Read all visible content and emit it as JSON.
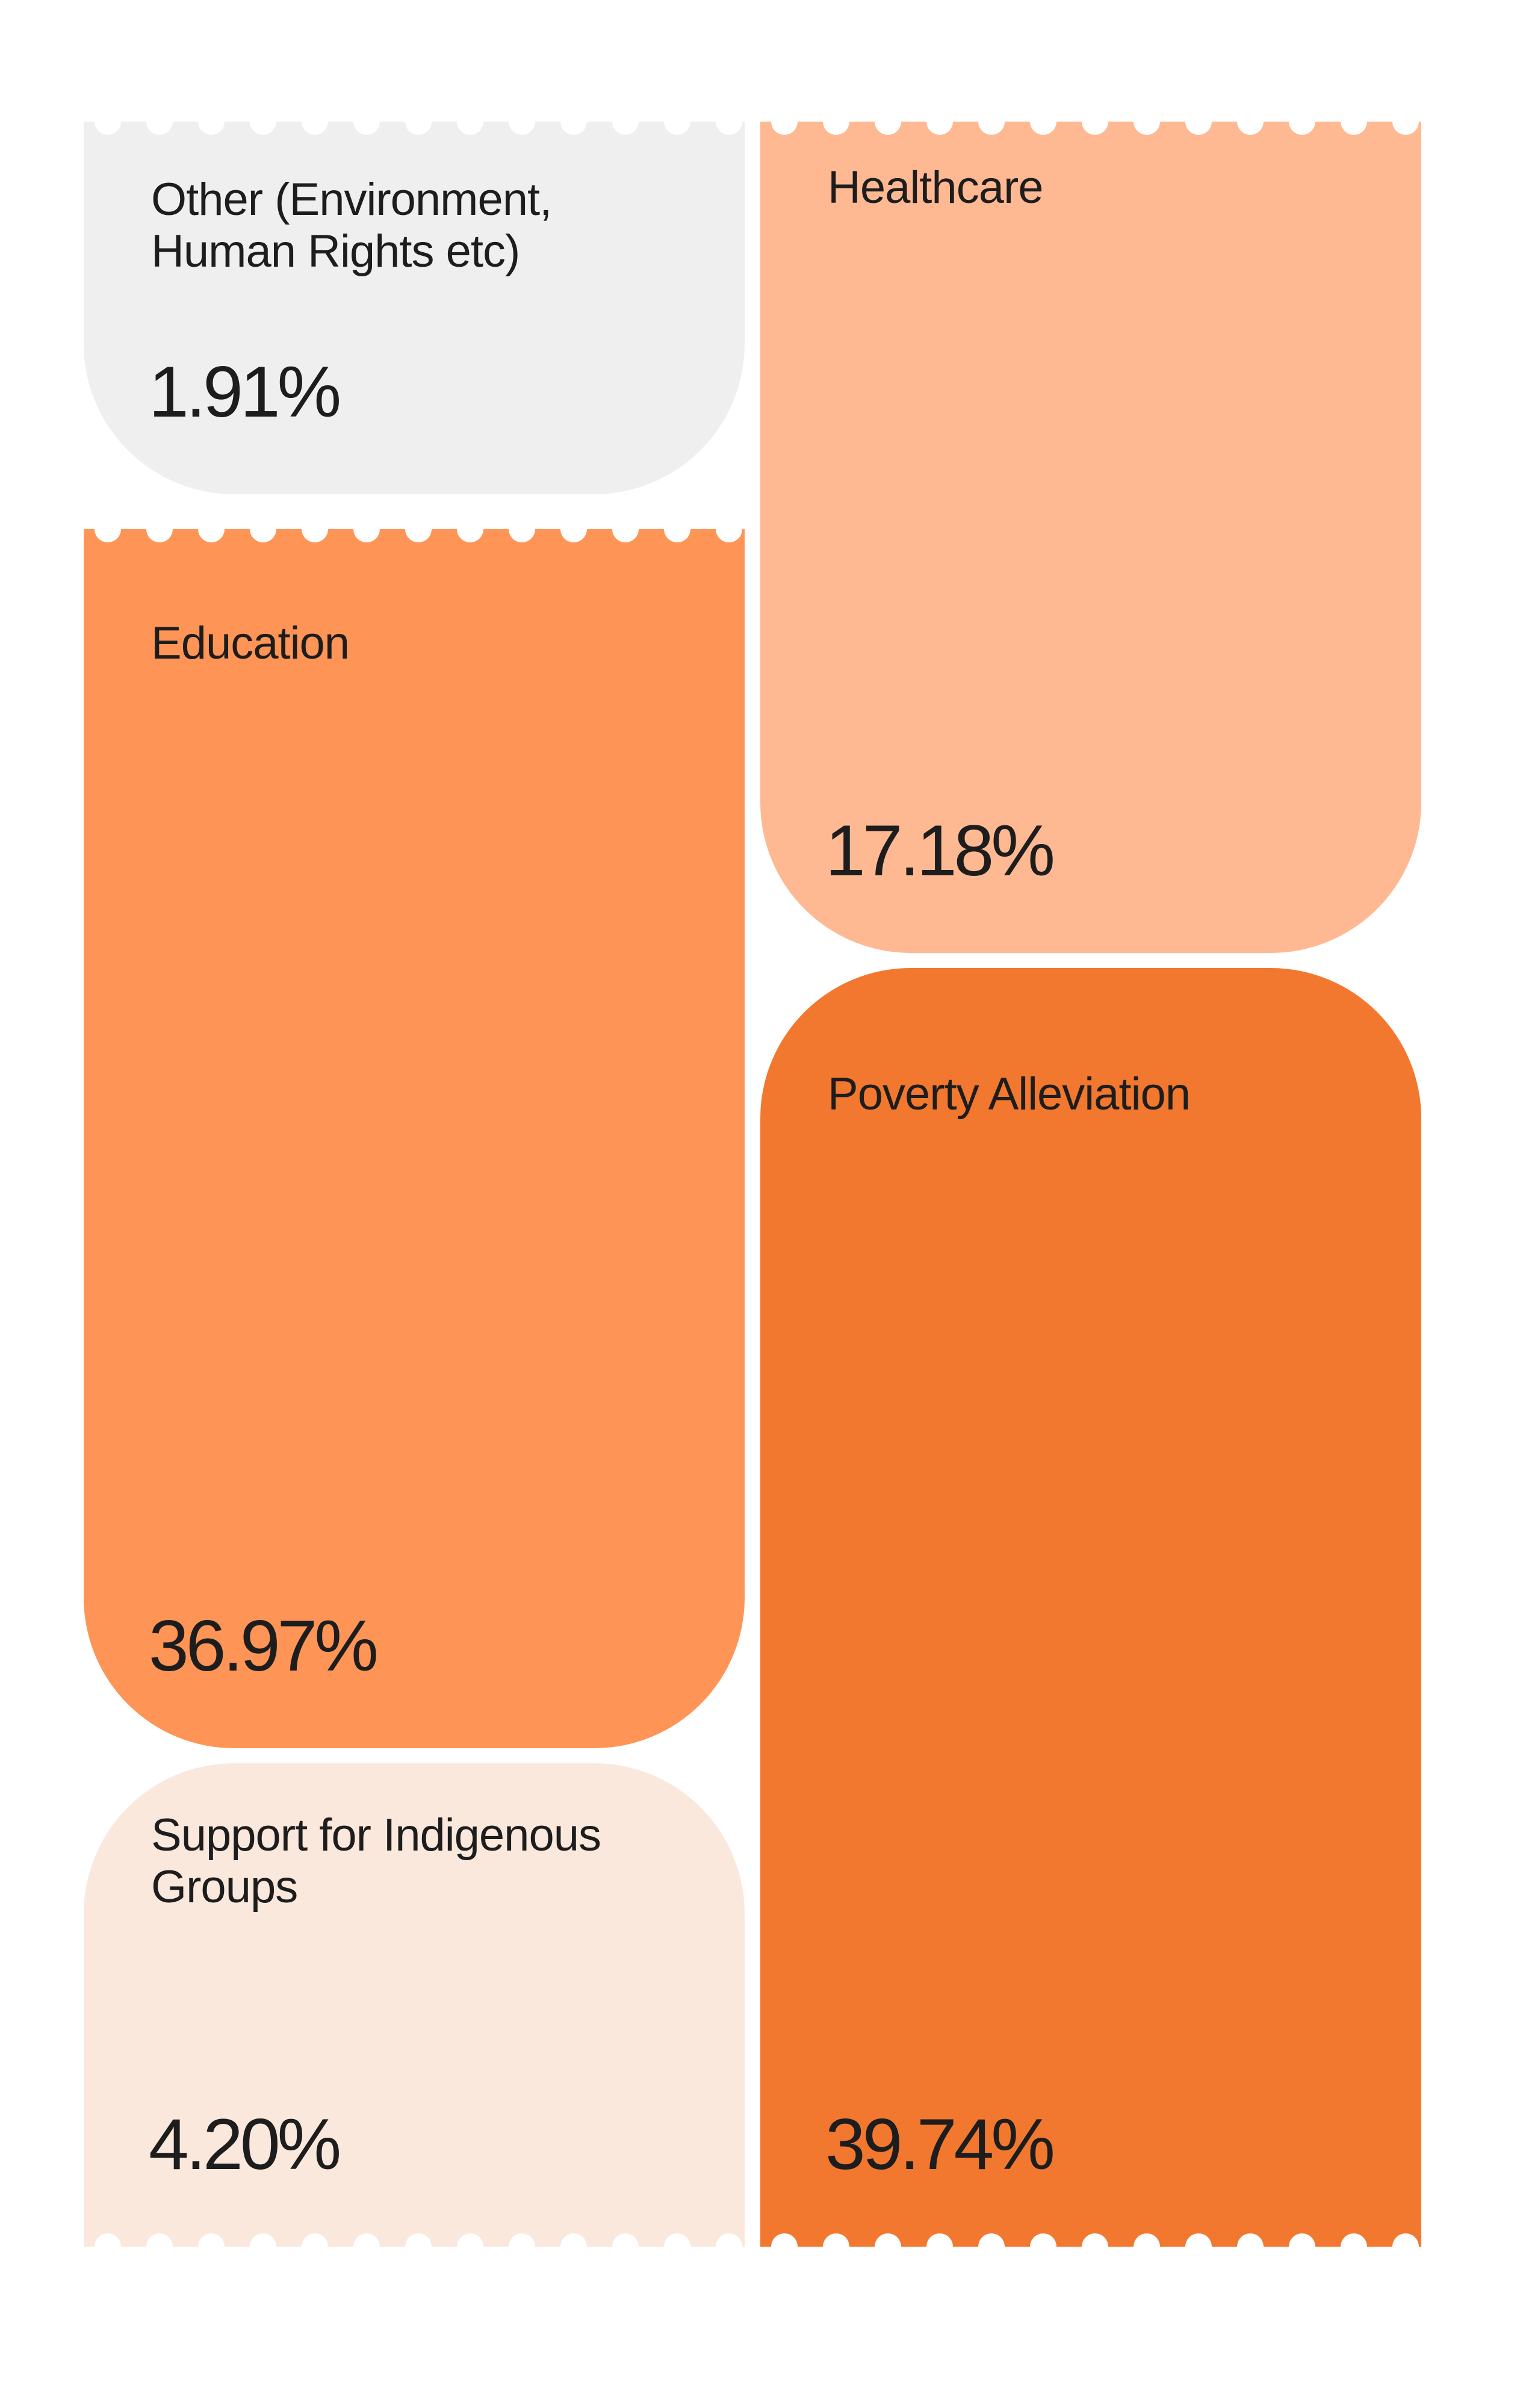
{
  "cards": [
    {
      "label": "Other (Environment, Human Rights etc)",
      "value": "1.91%",
      "color": "#efefef"
    },
    {
      "label": "Education",
      "value": "36.97%",
      "color": "#fe9556"
    },
    {
      "label": "Support for Indigenous Groups",
      "value": "4.20%",
      "color": "#fbe8dd"
    },
    {
      "label": "Healthcare",
      "value": "17.18%",
      "color": "#feb993"
    },
    {
      "label": "Poverty Alleviation",
      "value": "39.74%",
      "color": "#f2782f"
    }
  ]
}
